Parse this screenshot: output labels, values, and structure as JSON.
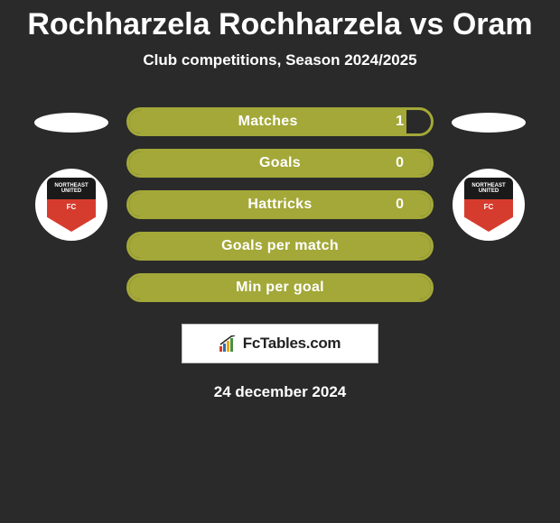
{
  "header": {
    "title": "Rochharzela Rochharzela vs Oram",
    "subtitle": "Club competitions, Season 2024/2025"
  },
  "stats": [
    {
      "label": "Matches",
      "value": "1",
      "fill_pct": 92
    },
    {
      "label": "Goals",
      "value": "0",
      "fill_pct": 100
    },
    {
      "label": "Hattricks",
      "value": "0",
      "fill_pct": 100
    },
    {
      "label": "Goals per match",
      "value": "",
      "fill_pct": 100
    },
    {
      "label": "Min per goal",
      "value": "",
      "fill_pct": 100
    }
  ],
  "club": {
    "name_top": "NORTHEAST",
    "name_bottom": "UNITED",
    "fc": "FC"
  },
  "attribution": {
    "text": "FcTables.com"
  },
  "date": "24 december 2024",
  "style": {
    "bg": "#2a2a2a",
    "bar_color": "#a3a838",
    "badge_red": "#d63c2e",
    "badge_black": "#1a1a1a",
    "text": "#ffffff"
  }
}
